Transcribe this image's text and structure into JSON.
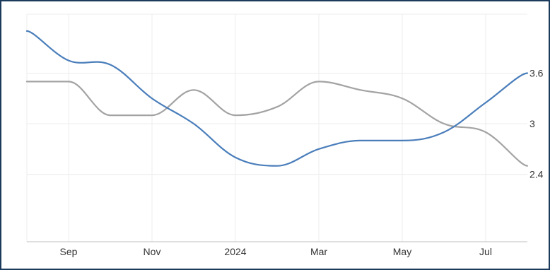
{
  "chart_data": {
    "type": "line",
    "title": "",
    "xlabel": "",
    "ylabel": "",
    "x_tick_labels": [
      "Sep",
      "Nov",
      "2024",
      "Mar",
      "May",
      "Jul"
    ],
    "x_tick_months": [
      1,
      3,
      5,
      7,
      9,
      11
    ],
    "y_ticks": [
      2.4,
      3,
      3.6
    ],
    "y_tick_labels": [
      "2.4",
      "3",
      "3.6"
    ],
    "ylim": [
      1.6,
      4.3
    ],
    "grid": true,
    "legend": "none",
    "x_months": [
      "2023-08",
      "2023-09",
      "2023-10",
      "2023-11",
      "2023-12",
      "2024-01",
      "2024-02",
      "2024-03",
      "2024-04",
      "2024-05",
      "2024-06",
      "2024-07",
      "2024-08"
    ],
    "series": [
      {
        "color": "#4a7ebb",
        "values": [
          4.1,
          3.75,
          3.7,
          3.3,
          3.0,
          2.6,
          2.5,
          2.7,
          2.8,
          2.8,
          2.9,
          3.25,
          3.6
        ]
      },
      {
        "color": "#a3a3a3",
        "values": [
          3.5,
          3.5,
          3.1,
          3.1,
          3.4,
          3.1,
          3.2,
          3.5,
          3.4,
          3.3,
          3.0,
          2.9,
          2.5
        ]
      }
    ]
  }
}
